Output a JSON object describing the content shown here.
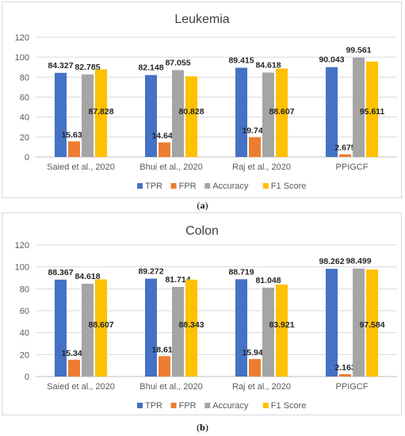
{
  "chart_data": [
    {
      "type": "bar",
      "title": "Leukemia",
      "categories": [
        "Saied et al., 2020",
        "Bhui et al., 2020",
        "Raj et al., 2020",
        "PPIGCF"
      ],
      "series": [
        {
          "name": "TPR",
          "color": "#4472C4",
          "values": [
            84.327,
            82.148,
            89.415,
            90.043
          ]
        },
        {
          "name": "FPR",
          "color": "#ED7D31",
          "values": [
            15.633,
            14.644,
            19.749,
            2.675
          ]
        },
        {
          "name": "Accuracy",
          "color": "#A5A5A5",
          "values": [
            82.785,
            87.055,
            84.618,
            99.561
          ]
        },
        {
          "name": "F1 Score",
          "color": "#FFC000",
          "values": [
            87.828,
            80.828,
            88.607,
            95.611
          ]
        }
      ],
      "ylim": [
        0,
        120
      ],
      "yticks": [
        0,
        20,
        40,
        60,
        80,
        100,
        120
      ],
      "grid": true,
      "legend": "bottom"
    },
    {
      "type": "bar",
      "title": "Colon",
      "categories": [
        "Saied et al., 2020",
        "Bhui et al., 2020",
        "Raj et al., 2020",
        "PPIGCF"
      ],
      "series": [
        {
          "name": "TPR",
          "color": "#4472C4",
          "values": [
            88.367,
            89.272,
            88.719,
            98.262
          ]
        },
        {
          "name": "FPR",
          "color": "#ED7D31",
          "values": [
            15.341,
            18.613,
            15.943,
            2.163
          ]
        },
        {
          "name": "Accuracy",
          "color": "#A5A5A5",
          "values": [
            84.618,
            81.714,
            81.048,
            98.499
          ]
        },
        {
          "name": "F1 Score",
          "color": "#FFC000",
          "values": [
            88.607,
            88.343,
            83.921,
            97.584
          ]
        }
      ],
      "ylim": [
        0,
        120
      ],
      "yticks": [
        0,
        20,
        40,
        60,
        80,
        100,
        120
      ],
      "grid": true,
      "legend": "bottom"
    }
  ],
  "captions": [
    {
      "open": "(",
      "letter": "a",
      "close": ")"
    },
    {
      "open": "(",
      "letter": "b",
      "close": ")"
    }
  ]
}
